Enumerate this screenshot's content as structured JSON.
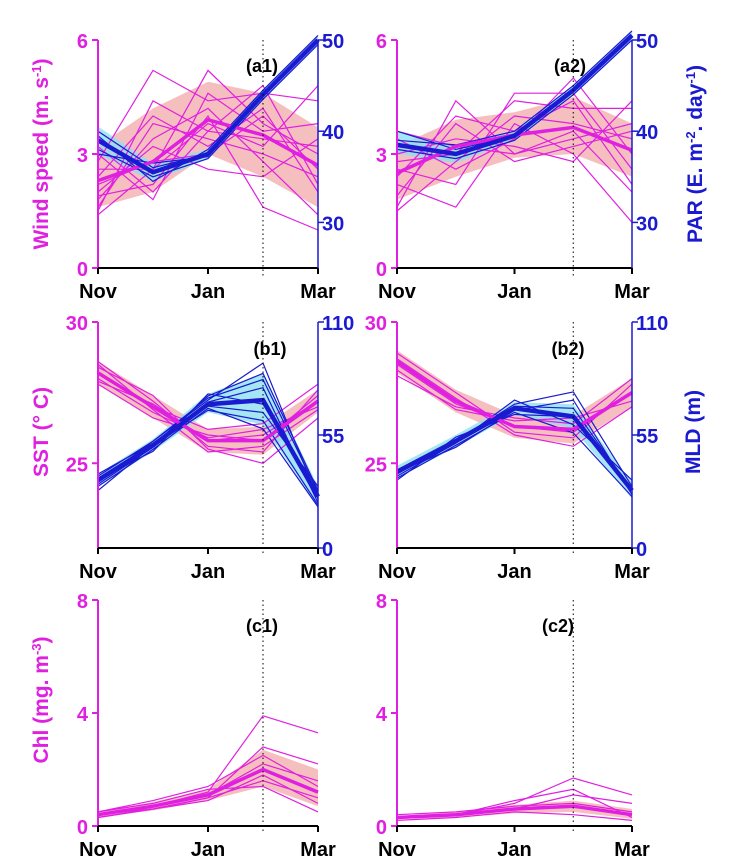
{
  "colors": {
    "magenta": "#e020e0",
    "blue": "#1a1ad0",
    "pink_band": "#f5b8b8",
    "cyan_band": "#8fe0f0",
    "grid": "#000000"
  },
  "chart_data": [
    {
      "id": "a1",
      "type": "line",
      "annotation": "(a1)",
      "x": [
        0,
        1,
        2,
        3,
        4
      ],
      "xlim": [
        0,
        4
      ],
      "x_ticks": [
        {
          "x": 0,
          "label": "Nov"
        },
        {
          "x": 2,
          "label": "Jan"
        },
        {
          "x": 4,
          "label": "Mar"
        }
      ],
      "vline_x": 3,
      "left_axis": {
        "label": "Wind speed (m. s",
        "label_sup": "-1",
        "label_end": ")",
        "ylim": [
          0,
          6
        ],
        "ticks": [
          "0",
          "3",
          "6"
        ],
        "tick_values": [
          0,
          3,
          6
        ]
      },
      "right_axis": {
        "label": "",
        "ylim": [
          25,
          50
        ],
        "ticks": [
          "30",
          "40",
          "50"
        ],
        "tick_values": [
          30,
          40,
          50
        ]
      },
      "left_series": {
        "mean": [
          2.3,
          2.8,
          3.9,
          3.5,
          2.7
        ],
        "band_low": [
          1.6,
          2.0,
          3.0,
          2.4,
          1.6
        ],
        "band_high": [
          3.2,
          4.2,
          4.9,
          4.6,
          3.7
        ],
        "members": [
          [
            1.6,
            3.8,
            3.4,
            3.0,
            2.4
          ],
          [
            2.8,
            5.2,
            4.4,
            4.6,
            4.4
          ],
          [
            1.9,
            2.2,
            4.0,
            1.6,
            1.0
          ],
          [
            2.6,
            2.6,
            5.2,
            3.8,
            3.0
          ],
          [
            3.2,
            2.0,
            3.6,
            4.8,
            2.2
          ],
          [
            2.0,
            3.2,
            2.6,
            2.4,
            3.4
          ],
          [
            1.4,
            2.6,
            3.8,
            3.2,
            4.8
          ],
          [
            2.4,
            4.0,
            3.2,
            4.2,
            2.0
          ],
          [
            3.0,
            1.8,
            4.6,
            3.6,
            3.8
          ],
          [
            1.8,
            3.4,
            4.2,
            2.8,
            1.4
          ],
          [
            2.2,
            2.8,
            3.0,
            4.0,
            2.6
          ],
          [
            1.5,
            4.4,
            3.6,
            3.4,
            3.2
          ]
        ]
      },
      "right_series": {
        "mean": [
          39,
          35.5,
          37.5,
          44,
          50
        ],
        "band_low": [
          37.5,
          34.5,
          37,
          43.5,
          49.5
        ],
        "band_high": [
          40.5,
          36.5,
          38,
          44.5,
          50.5
        ],
        "members": [
          [
            40,
            36,
            37.5,
            44,
            50
          ],
          [
            38,
            35,
            37,
            43.5,
            49.5
          ],
          [
            39.5,
            34.5,
            38,
            44.5,
            50.5
          ],
          [
            37.5,
            36.5,
            37.2,
            44,
            50
          ]
        ]
      }
    },
    {
      "id": "a2",
      "type": "line",
      "annotation": "(a2)",
      "x": [
        0,
        1,
        2,
        3,
        4
      ],
      "xlim": [
        0,
        4
      ],
      "x_ticks": [
        {
          "x": 0,
          "label": "Nov"
        },
        {
          "x": 2,
          "label": "Jan"
        },
        {
          "x": 4,
          "label": "Mar"
        }
      ],
      "vline_x": 3,
      "left_axis": {
        "label": "",
        "ylim": [
          0,
          6
        ],
        "ticks": [
          "0",
          "3",
          "6"
        ],
        "tick_values": [
          0,
          3,
          6
        ]
      },
      "right_axis": {
        "label": "PAR (E. m",
        "label_sup": "-2",
        "label_mid": ". day",
        "label_sup2": "-1",
        "label_end": ")",
        "ylim": [
          25,
          50
        ],
        "ticks": [
          "30",
          "40",
          "50"
        ],
        "tick_values": [
          30,
          40,
          50
        ]
      },
      "left_series": {
        "mean": [
          2.5,
          3.2,
          3.5,
          3.7,
          3.1
        ],
        "band_low": [
          1.8,
          2.4,
          2.9,
          3.0,
          2.4
        ],
        "band_high": [
          3.2,
          3.9,
          4.1,
          4.5,
          3.8
        ],
        "members": [
          [
            1.6,
            4.4,
            3.0,
            3.6,
            2.0
          ],
          [
            2.8,
            3.0,
            4.4,
            4.2,
            4.2
          ],
          [
            2.2,
            1.6,
            3.8,
            3.0,
            1.2
          ],
          [
            3.4,
            2.6,
            3.4,
            5.0,
            3.0
          ],
          [
            1.9,
            3.8,
            2.8,
            3.2,
            3.6
          ],
          [
            2.6,
            2.2,
            4.6,
            4.6,
            2.6
          ],
          [
            3.0,
            3.4,
            3.2,
            2.8,
            4.4
          ],
          [
            1.5,
            2.8,
            4.0,
            3.8,
            3.4
          ],
          [
            2.4,
            4.0,
            3.6,
            4.4,
            2.2
          ],
          [
            3.6,
            3.2,
            3.0,
            3.4,
            3.8
          ]
        ]
      },
      "right_series": {
        "mean": [
          38.5,
          37.5,
          39.5,
          44.5,
          50.5
        ],
        "band_low": [
          37.5,
          36.5,
          39,
          44,
          50
        ],
        "band_high": [
          40,
          38.5,
          40,
          45,
          51
        ],
        "members": [
          [
            40,
            38,
            39.5,
            44.5,
            50.5
          ],
          [
            38,
            37,
            39,
            44,
            50
          ],
          [
            39,
            38.5,
            40,
            45,
            51
          ]
        ]
      }
    },
    {
      "id": "b1",
      "type": "line",
      "annotation": "(b1)",
      "x": [
        0,
        1,
        2,
        3,
        4
      ],
      "xlim": [
        0,
        4
      ],
      "x_ticks": [
        {
          "x": 0,
          "label": "Nov"
        },
        {
          "x": 2,
          "label": "Jan"
        },
        {
          "x": 4,
          "label": "Mar"
        }
      ],
      "vline_x": 3,
      "left_axis": {
        "label": "SST (° C)",
        "ylim": [
          22,
          30
        ],
        "ticks": [
          "25",
          "30"
        ],
        "tick_values": [
          25,
          30
        ]
      },
      "right_axis": {
        "label": "",
        "ylim": [
          0,
          110
        ],
        "ticks": [
          "0",
          "55",
          "110"
        ],
        "tick_values": [
          0,
          55,
          110
        ]
      },
      "left_series": {
        "mean": [
          28.2,
          27.0,
          25.8,
          25.8,
          27.2
        ],
        "band_low": [
          27.8,
          26.6,
          25.4,
          25.3,
          26.8
        ],
        "band_high": [
          28.6,
          27.4,
          26.2,
          26.3,
          27.6
        ],
        "members": [
          [
            28.6,
            27.2,
            25.6,
            25.4,
            27.6
          ],
          [
            28.0,
            26.8,
            25.9,
            26.2,
            27.0
          ],
          [
            28.4,
            27.4,
            25.5,
            25.0,
            26.6
          ],
          [
            27.8,
            26.6,
            26.0,
            25.8,
            27.4
          ],
          [
            28.2,
            27.0,
            26.2,
            26.4,
            27.8
          ],
          [
            28.5,
            26.9,
            25.4,
            25.6,
            26.9
          ],
          [
            27.9,
            27.1,
            25.8,
            26.0,
            27.2
          ]
        ]
      },
      "right_series": {
        "mean": [
          33,
          50,
          70,
          72,
          25
        ],
        "band_low": [
          30,
          47,
          66,
          60,
          20
        ],
        "band_high": [
          36,
          53,
          75,
          85,
          30
        ],
        "members": [
          [
            35,
            52,
            72,
            90,
            24
          ],
          [
            30,
            48,
            68,
            58,
            20
          ],
          [
            33,
            50,
            74,
            85,
            28
          ],
          [
            36,
            51,
            69,
            66,
            30
          ],
          [
            31,
            49,
            71,
            78,
            22
          ],
          [
            34,
            47,
            75,
            70,
            26
          ],
          [
            28,
            50,
            67,
            62,
            21
          ],
          [
            32,
            52,
            73,
            82,
            27
          ]
        ]
      }
    },
    {
      "id": "b2",
      "type": "line",
      "annotation": "(b2)",
      "x": [
        0,
        1,
        2,
        3,
        4
      ],
      "xlim": [
        0,
        4
      ],
      "x_ticks": [
        {
          "x": 0,
          "label": "Nov"
        },
        {
          "x": 2,
          "label": "Jan"
        },
        {
          "x": 4,
          "label": "Mar"
        }
      ],
      "vline_x": 3,
      "left_axis": {
        "label": "",
        "ylim": [
          22,
          30
        ],
        "ticks": [
          "25",
          "30"
        ],
        "tick_values": [
          25,
          30
        ]
      },
      "right_axis": {
        "label": "MLD (m)",
        "ylim": [
          0,
          110
        ],
        "ticks": [
          "0",
          "55",
          "110"
        ],
        "tick_values": [
          0,
          55,
          110
        ]
      },
      "left_series": {
        "mean": [
          28.6,
          27.2,
          26.3,
          26.2,
          27.5
        ],
        "band_low": [
          28.2,
          26.8,
          25.9,
          25.7,
          27.0
        ],
        "band_high": [
          29.0,
          27.6,
          26.7,
          26.7,
          28.0
        ],
        "members": [
          [
            28.9,
            27.5,
            26.1,
            25.9,
            27.8
          ],
          [
            28.3,
            26.9,
            26.5,
            26.6,
            27.2
          ],
          [
            28.7,
            27.3,
            26.0,
            25.6,
            27.0
          ],
          [
            28.1,
            27.0,
            26.6,
            26.4,
            28.0
          ],
          [
            28.5,
            27.1,
            26.3,
            26.1,
            27.5
          ]
        ]
      },
      "right_series": {
        "mean": [
          37,
          52,
          68,
          64,
          28
        ],
        "band_low": [
          34,
          49,
          65,
          58,
          24
        ],
        "band_high": [
          40,
          55,
          71,
          70,
          32
        ],
        "members": [
          [
            36,
            52,
            70,
            76,
            30
          ],
          [
            34,
            50,
            66,
            56,
            25
          ],
          [
            38,
            53,
            69,
            68,
            28
          ],
          [
            35,
            51,
            72,
            60,
            33
          ],
          [
            37,
            49,
            67,
            72,
            26
          ],
          [
            33,
            54,
            65,
            64,
            29
          ]
        ]
      }
    },
    {
      "id": "c1",
      "type": "line",
      "annotation": "(c1)",
      "x": [
        0,
        1,
        2,
        3,
        4
      ],
      "xlim": [
        0,
        4
      ],
      "x_ticks": [
        {
          "x": 0,
          "label": "Nov"
        },
        {
          "x": 2,
          "label": "Jan"
        },
        {
          "x": 4,
          "label": "Mar"
        }
      ],
      "vline_x": 3,
      "left_axis": {
        "label": "Chl (mg. m",
        "label_sup": "-3",
        "label_end": ")",
        "ylim": [
          0,
          8
        ],
        "ticks": [
          "0",
          "4",
          "8"
        ],
        "tick_values": [
          0,
          4,
          8
        ]
      },
      "right_axis": null,
      "left_series": {
        "mean": [
          0.4,
          0.7,
          1.1,
          2.0,
          1.2
        ],
        "band_low": [
          0.3,
          0.55,
          0.9,
          1.4,
          0.7
        ],
        "band_high": [
          0.5,
          0.85,
          1.3,
          2.7,
          2.0
        ],
        "members": [
          [
            0.4,
            0.7,
            1.2,
            3.9,
            3.3
          ],
          [
            0.3,
            0.6,
            1.0,
            2.8,
            2.2
          ],
          [
            0.5,
            0.8,
            1.3,
            1.4,
            0.5
          ],
          [
            0.4,
            0.7,
            1.1,
            2.2,
            1.6
          ],
          [
            0.3,
            0.6,
            0.9,
            1.8,
            0.8
          ],
          [
            0.5,
            0.9,
            1.4,
            2.5,
            1.4
          ],
          [
            0.4,
            0.6,
            1.0,
            1.6,
            1.0
          ]
        ]
      },
      "right_series": null
    },
    {
      "id": "c2",
      "type": "line",
      "annotation": "(c2)",
      "x": [
        0,
        1,
        2,
        3,
        4
      ],
      "xlim": [
        0,
        4
      ],
      "x_ticks": [
        {
          "x": 0,
          "label": "Nov"
        },
        {
          "x": 2,
          "label": "Jan"
        },
        {
          "x": 4,
          "label": "Mar"
        }
      ],
      "vline_x": 3,
      "left_axis": {
        "label": "",
        "ylim": [
          0,
          8
        ],
        "ticks": [
          "0",
          "4",
          "8"
        ],
        "tick_values": [
          0,
          4,
          8
        ]
      },
      "right_axis": null,
      "left_series": {
        "mean": [
          0.3,
          0.4,
          0.6,
          0.7,
          0.4
        ],
        "band_low": [
          0.25,
          0.3,
          0.45,
          0.5,
          0.25
        ],
        "band_high": [
          0.35,
          0.5,
          0.75,
          0.9,
          0.6
        ],
        "members": [
          [
            0.3,
            0.4,
            0.8,
            1.7,
            1.1
          ],
          [
            0.3,
            0.4,
            0.6,
            1.1,
            0.8
          ],
          [
            0.2,
            0.3,
            0.5,
            0.4,
            0.2
          ],
          [
            0.4,
            0.5,
            0.7,
            0.8,
            0.5
          ],
          [
            0.3,
            0.4,
            0.9,
            1.3,
            0.3
          ]
        ]
      },
      "right_series": null
    }
  ]
}
